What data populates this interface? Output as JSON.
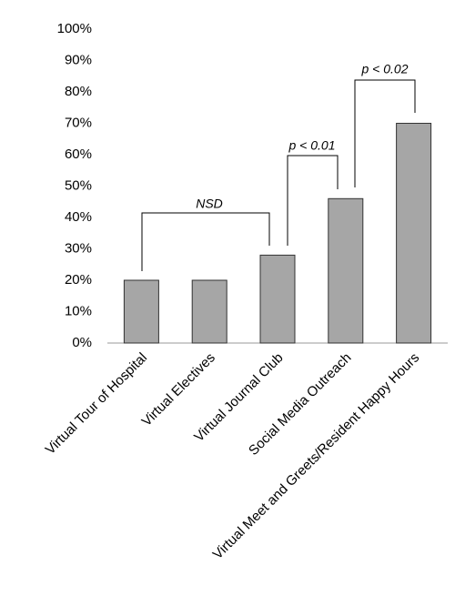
{
  "chart_data": {
    "type": "bar",
    "categories": [
      "Virtual Tour of Hospital",
      "Virtual Electives",
      "Virtual Journal Club",
      "Social Media Outreach",
      "Virtual Meet and Greets/Resident Happy Hours"
    ],
    "values": [
      20,
      20,
      28,
      46,
      70
    ],
    "color": "#a6a6a6",
    "ylim": [
      0,
      100
    ],
    "yticks": [
      {
        "value": 0,
        "label": "0%"
      },
      {
        "value": 10,
        "label": "10%"
      },
      {
        "value": 20,
        "label": "20%"
      },
      {
        "value": 30,
        "label": "30%"
      },
      {
        "value": 40,
        "label": "40%"
      },
      {
        "value": 50,
        "label": "50%"
      },
      {
        "value": 60,
        "label": "60%"
      },
      {
        "value": 70,
        "label": "70%"
      },
      {
        "value": 80,
        "label": "80%"
      },
      {
        "value": 90,
        "label": "90%"
      },
      {
        "value": 100,
        "label": "100%"
      }
    ],
    "grid": false,
    "annotations": [
      "NSD",
      "p < 0.01",
      "p < 0.02"
    ]
  }
}
